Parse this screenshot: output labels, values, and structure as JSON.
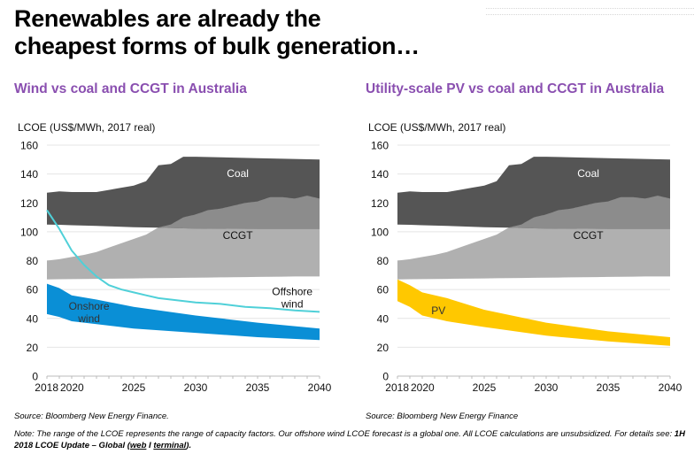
{
  "page": {
    "title_line1": "Renewables are already the",
    "title_line2": "cheapest forms of bulk generation…",
    "colors": {
      "subtitle": "#8a4fb0",
      "coal": "#555555",
      "ccgt_overlap": "#8c8c8c",
      "ccgt": "#b0b0b0",
      "onshore_wind": "#0a8fd6",
      "offshore_wind": "#4fd0d8",
      "pv": "#ffc800"
    },
    "source_left": "Source: Bloomberg New Energy Finance.",
    "source_right": "Source: Bloomberg New Energy Finance",
    "note_text": "Note: The range of the LCOE represents the range of capacity factors. Our offshore wind LCOE forecast is a global one. All LCOE calculations are unsubsidized. For details see: ",
    "note_report": "1H 2018 LCOE Update – Global (",
    "note_link_web": "web",
    "note_sep": " I ",
    "note_link_terminal": "terminal",
    "note_end": ")."
  },
  "chart_data": [
    {
      "type": "area",
      "title": "Wind vs coal and CCGT in Australia",
      "ylabel": "LCOE (US$/MWh, 2017 real)",
      "xlabel": "",
      "ylim": [
        0,
        160
      ],
      "xlim": [
        2018,
        2040
      ],
      "yticks": [
        0,
        20,
        40,
        60,
        80,
        100,
        120,
        140,
        160
      ],
      "xticks": [
        "2018",
        "2020",
        "2025",
        "2030",
        "2035",
        "2040"
      ],
      "grid": true,
      "series": [
        {
          "name": "Coal",
          "kind": "range",
          "label": "Coal",
          "x": [
            2018,
            2019,
            2020,
            2021,
            2022,
            2023,
            2024,
            2025,
            2026,
            2027,
            2028,
            2029,
            2030,
            2035,
            2040
          ],
          "upper": [
            127,
            128,
            127.5,
            127.5,
            127.5,
            129,
            130.5,
            132,
            135,
            146,
            147,
            152,
            152,
            151,
            150
          ],
          "lower": [
            105,
            104.8,
            104.5,
            104.3,
            104,
            103.8,
            103.5,
            103.2,
            103,
            102.8,
            102.6,
            102.4,
            102.2,
            102,
            102
          ]
        },
        {
          "name": "CCGT",
          "kind": "range",
          "label": "CCGT",
          "x": [
            2018,
            2019,
            2020,
            2021,
            2022,
            2023,
            2024,
            2025,
            2026,
            2027,
            2028,
            2029,
            2030,
            2031,
            2032,
            2033,
            2034,
            2035,
            2036,
            2037,
            2038,
            2039,
            2040
          ],
          "upper": [
            80,
            81,
            82.5,
            84,
            86,
            89,
            92,
            95,
            98,
            103,
            105,
            110,
            112,
            115,
            116,
            118,
            120,
            121,
            124,
            124,
            123,
            125,
            123
          ],
          "lower": [
            67,
            67.1,
            67.2,
            67.3,
            67.4,
            67.5,
            67.6,
            67.7,
            67.8,
            67.9,
            68,
            68.1,
            68.2,
            68.3,
            68.4,
            68.5,
            68.6,
            68.7,
            68.8,
            68.9,
            69,
            69,
            69
          ]
        },
        {
          "name": "Onshore wind",
          "kind": "range",
          "label": "Onshore wind",
          "x": [
            2018,
            2019,
            2020,
            2022,
            2025,
            2030,
            2035,
            2040
          ],
          "upper": [
            64,
            61,
            56,
            53,
            48,
            42,
            37,
            33
          ],
          "lower": [
            43,
            41,
            38,
            36,
            33,
            30,
            27,
            25
          ]
        },
        {
          "name": "Offshore wind",
          "kind": "line",
          "label": "Offshore wind",
          "x": [
            2018,
            2019,
            2020,
            2021,
            2022,
            2023,
            2024,
            2025,
            2026,
            2027,
            2028,
            2030,
            2032,
            2034,
            2036,
            2038,
            2040
          ],
          "values": [
            115,
            102,
            87,
            77,
            69,
            63,
            60,
            58,
            56,
            54,
            53,
            51,
            50,
            48,
            47,
            45.5,
            44.5
          ]
        }
      ],
      "source": "Source: Bloomberg New Energy Finance."
    },
    {
      "type": "area",
      "title": "Utility-scale PV vs coal and CCGT in Australia",
      "ylabel": "LCOE (US$/MWh, 2017 real)",
      "xlabel": "",
      "ylim": [
        0,
        160
      ],
      "xlim": [
        2018,
        2040
      ],
      "yticks": [
        0,
        20,
        40,
        60,
        80,
        100,
        120,
        140,
        160
      ],
      "xticks": [
        "2018",
        "2020",
        "2025",
        "2030",
        "2035",
        "2040"
      ],
      "grid": true,
      "series": [
        {
          "name": "Coal",
          "kind": "range",
          "label": "Coal",
          "x": [
            2018,
            2019,
            2020,
            2021,
            2022,
            2023,
            2024,
            2025,
            2026,
            2027,
            2028,
            2029,
            2030,
            2035,
            2040
          ],
          "upper": [
            127,
            128,
            127.5,
            127.5,
            127.5,
            129,
            130.5,
            132,
            135,
            146,
            147,
            152,
            152,
            151,
            150
          ],
          "lower": [
            105,
            104.8,
            104.5,
            104.3,
            104,
            103.8,
            103.5,
            103.2,
            103,
            102.8,
            102.6,
            102.4,
            102.2,
            102,
            102
          ]
        },
        {
          "name": "CCGT",
          "kind": "range",
          "label": "CCGT",
          "x": [
            2018,
            2019,
            2020,
            2021,
            2022,
            2023,
            2024,
            2025,
            2026,
            2027,
            2028,
            2029,
            2030,
            2031,
            2032,
            2033,
            2034,
            2035,
            2036,
            2037,
            2038,
            2039,
            2040
          ],
          "upper": [
            80,
            81,
            82.5,
            84,
            86,
            89,
            92,
            95,
            98,
            103,
            105,
            110,
            112,
            115,
            116,
            118,
            120,
            121,
            124,
            124,
            123,
            125,
            123
          ],
          "lower": [
            67,
            67.1,
            67.2,
            67.3,
            67.4,
            67.5,
            67.6,
            67.7,
            67.8,
            67.9,
            68,
            68.1,
            68.2,
            68.3,
            68.4,
            68.5,
            68.6,
            68.7,
            68.8,
            68.9,
            69,
            69,
            69
          ]
        },
        {
          "name": "PV",
          "kind": "range",
          "label": "PV",
          "x": [
            2018,
            2019,
            2020,
            2022,
            2025,
            2030,
            2035,
            2040
          ],
          "upper": [
            67,
            63,
            58,
            54,
            46,
            37,
            31,
            27
          ],
          "lower": [
            52,
            48,
            42,
            38,
            34,
            28,
            24,
            21
          ]
        }
      ],
      "source": "Source: Bloomberg New Energy Finance"
    }
  ]
}
